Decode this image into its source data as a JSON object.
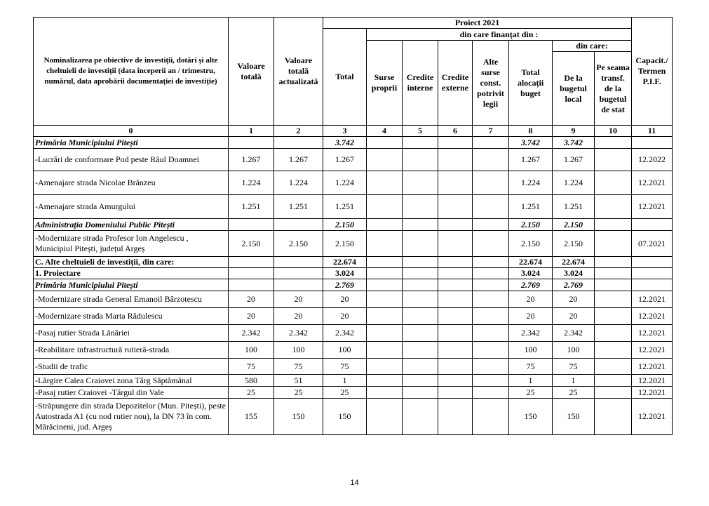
{
  "table": {
    "header": {
      "title": "Nominalizarea pe obiective de investiții, dotări și alte cheltuieli de investiții (data începerii an / trimestru,  numărul, data aprobării documentației de investiție)",
      "valoare_totala": "Valoare totală",
      "valoare_actualizata": "Valoare totală actualizată",
      "proiect": "Proiect 2021",
      "total": "Total",
      "finantat_din": "din care finanțat din :",
      "surse_proprii": "Surse proprii",
      "credite_interne": "Credite interne",
      "credite_externe": "Credite externe",
      "alte_surse": "Alte surse const. potrivit legii",
      "total_alocatii": "Total alocații buget",
      "din_care": "din care:",
      "bugetul_local": "De la bugetul local",
      "bugetul_de_stat": "Pe seama transf. de la bugetul de stat",
      "capacitate": "Capacit./ Termen P.I.F."
    },
    "column_numbers": [
      "0",
      "1",
      "2",
      "3",
      "4",
      "5",
      "6",
      "7",
      "8",
      "9",
      "10",
      "11"
    ],
    "rows": [
      [
        "Primăria Municipiului Pitești",
        null,
        null,
        "3.742",
        null,
        null,
        null,
        null,
        "3.742",
        "3.742",
        null,
        null
      ],
      [
        "-Lucrări de conformare Pod peste Râul Doamnei",
        "1.267",
        "1.267",
        "1.267",
        null,
        null,
        null,
        null,
        "1.267",
        "1.267",
        null,
        "12.2022"
      ],
      [
        "-Amenajare strada Nicolae Brânzeu",
        "1.224",
        "1.224",
        "1.224",
        null,
        null,
        null,
        null,
        "1.224",
        "1.224",
        null,
        "12.2021"
      ],
      [
        "-Amenajare strada Amurgului",
        "1.251",
        "1.251",
        "1.251",
        null,
        null,
        null,
        null,
        "1.251",
        "1.251",
        null,
        "12.2021"
      ],
      [
        "Administrația Domeniului Public Pitești",
        null,
        null,
        "2.150",
        null,
        null,
        null,
        null,
        "2.150",
        "2.150",
        null,
        null
      ],
      [
        "-Modernizare strada Profesor Ion Angelescu , Municipiul Pitești, județul Argeș",
        "2.150",
        "2.150",
        "2.150",
        null,
        null,
        null,
        null,
        "2.150",
        "2.150",
        null,
        "07.2021"
      ],
      [
        "C. Alte cheltuieli de investiții, din care:",
        null,
        null,
        "22.674",
        null,
        null,
        null,
        null,
        "22.674",
        "22.674",
        null,
        null
      ],
      [
        "1. Proiectare",
        null,
        null,
        "3.024",
        null,
        null,
        null,
        null,
        "3.024",
        "3.024",
        null,
        null
      ],
      [
        "Primăria Municipiului Pitești",
        null,
        null,
        "2.769",
        null,
        null,
        null,
        null,
        "2.769",
        "2.769",
        null,
        null
      ],
      [
        "-Modernizare strada General Emanoil Bârzotescu",
        "20",
        "20",
        "20",
        null,
        null,
        null,
        null,
        "20",
        "20",
        null,
        "12.2021"
      ],
      [
        "-Modernizare strada Marta Rădulescu",
        "20",
        "20",
        "20",
        null,
        null,
        null,
        null,
        "20",
        "20",
        null,
        "12.2021"
      ],
      [
        "-Pasaj  rutier Strada Lânăriei",
        "2.342",
        "2.342",
        "2.342",
        null,
        null,
        null,
        null,
        "2.342",
        "2.342",
        null,
        "12.2021"
      ],
      [
        "-Reabilitare infrastructură rutieră-strada",
        "100",
        "100",
        "100",
        null,
        null,
        null,
        null,
        "100",
        "100",
        null,
        "12.2021"
      ],
      [
        "-Studii de trafic",
        "75",
        "75",
        "75",
        null,
        null,
        null,
        null,
        "75",
        "75",
        null,
        "12.2021"
      ],
      [
        "-Lărgire Calea Craiovei zona Târg Săptămânal",
        "580",
        "51",
        "1",
        null,
        null,
        null,
        null,
        "1",
        "1",
        null,
        "12.2021"
      ],
      [
        "-Pasaj rutier Craiovei -Târgul din Vale",
        "25",
        "25",
        "25",
        null,
        null,
        null,
        null,
        "25",
        "25",
        null,
        "12.2021"
      ],
      [
        "-Străpungere din strada Depozitelor (Mun. Pitești), peste Autostrada A1 (cu nod rutier nou), la DN 73 în com. Mărăcineni, jud. Argeș",
        "155",
        "150",
        "150",
        null,
        null,
        null,
        null,
        "150",
        "150",
        null,
        "12.2021"
      ]
    ]
  },
  "page_number": "14"
}
